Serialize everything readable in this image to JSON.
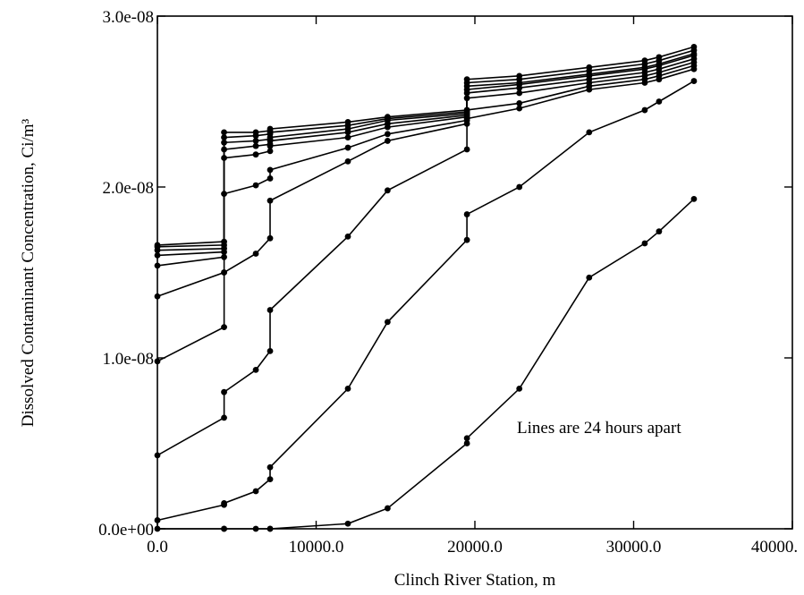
{
  "chart_data": {
    "type": "line",
    "xlabel": "Clinch River Station, m",
    "ylabel": "Dissolved Contaminant Concentration, Ci/m³",
    "annotation": "Lines are 24 hours apart",
    "xlim": [
      0,
      40000
    ],
    "ylim": [
      0,
      3e-08
    ],
    "xticks": [
      0,
      10000,
      20000,
      30000,
      40000
    ],
    "xtick_labels": [
      "0.0",
      "10000.0",
      "20000.0",
      "30000.0",
      "40000."
    ],
    "yticks": [
      0,
      1e-08,
      2e-08,
      3e-08
    ],
    "ytick_labels": [
      "0.0e+00",
      "1.0e-08",
      "2.0e-08",
      "3.0e-08"
    ],
    "grid": false,
    "legend": false,
    "line_color": "#000000",
    "x": [
      0,
      4200,
      4200,
      6200,
      7100,
      7100,
      12000,
      14500,
      19500,
      19500,
      22800,
      27200,
      30700,
      31600,
      33800
    ],
    "series": [
      {
        "values": [
          0,
          0,
          0,
          0,
          0,
          0,
          3e-10,
          1.2e-09,
          5e-09,
          5.3e-09,
          8.2e-09,
          1.47e-08,
          1.67e-08,
          1.74e-08,
          1.93e-08
        ]
      },
      {
        "values": [
          5e-10,
          1.4e-09,
          1.5e-09,
          2.2e-09,
          2.9e-09,
          3.6e-09,
          8.2e-09,
          1.21e-08,
          1.69e-08,
          1.84e-08,
          2e-08,
          2.32e-08,
          2.45e-08,
          2.5e-08,
          2.62e-08
        ]
      },
      {
        "values": [
          4.3e-09,
          6.5e-09,
          8e-09,
          9.3e-09,
          1.04e-08,
          1.28e-08,
          1.71e-08,
          1.98e-08,
          2.22e-08,
          2.4e-08,
          2.46e-08,
          2.57e-08,
          2.61e-08,
          2.63e-08,
          2.69e-08
        ]
      },
      {
        "values": [
          9.8e-09,
          1.18e-08,
          1.5e-08,
          1.61e-08,
          1.7e-08,
          1.92e-08,
          2.15e-08,
          2.27e-08,
          2.37e-08,
          2.45e-08,
          2.49e-08,
          2.59e-08,
          2.63e-08,
          2.65e-08,
          2.71e-08
        ]
      },
      {
        "values": [
          1.36e-08,
          1.5e-08,
          1.96e-08,
          2.01e-08,
          2.05e-08,
          2.1e-08,
          2.23e-08,
          2.31e-08,
          2.39e-08,
          2.52e-08,
          2.55e-08,
          2.61e-08,
          2.65e-08,
          2.67e-08,
          2.73e-08
        ]
      },
      {
        "values": [
          1.54e-08,
          1.59e-08,
          2.17e-08,
          2.19e-08,
          2.21e-08,
          2.24e-08,
          2.29e-08,
          2.35e-08,
          2.41e-08,
          2.55e-08,
          2.58e-08,
          2.63e-08,
          2.67e-08,
          2.69e-08,
          2.75e-08
        ]
      },
      {
        "values": [
          1.6e-08,
          1.62e-08,
          2.22e-08,
          2.24e-08,
          2.25e-08,
          2.27e-08,
          2.32e-08,
          2.37e-08,
          2.42e-08,
          2.57e-08,
          2.6e-08,
          2.65e-08,
          2.69e-08,
          2.71e-08,
          2.77e-08
        ]
      },
      {
        "values": [
          1.63e-08,
          1.64e-08,
          2.26e-08,
          2.27e-08,
          2.28e-08,
          2.29e-08,
          2.34e-08,
          2.39e-08,
          2.43e-08,
          2.59e-08,
          2.61e-08,
          2.66e-08,
          2.7e-08,
          2.72e-08,
          2.78e-08
        ]
      },
      {
        "values": [
          1.65e-08,
          1.66e-08,
          2.29e-08,
          2.3e-08,
          2.31e-08,
          2.32e-08,
          2.36e-08,
          2.4e-08,
          2.44e-08,
          2.61e-08,
          2.63e-08,
          2.68e-08,
          2.72e-08,
          2.74e-08,
          2.8e-08
        ]
      },
      {
        "values": [
          1.66e-08,
          1.68e-08,
          2.32e-08,
          2.32e-08,
          2.33e-08,
          2.34e-08,
          2.38e-08,
          2.41e-08,
          2.45e-08,
          2.63e-08,
          2.65e-08,
          2.7e-08,
          2.74e-08,
          2.76e-08,
          2.82e-08
        ]
      }
    ]
  }
}
